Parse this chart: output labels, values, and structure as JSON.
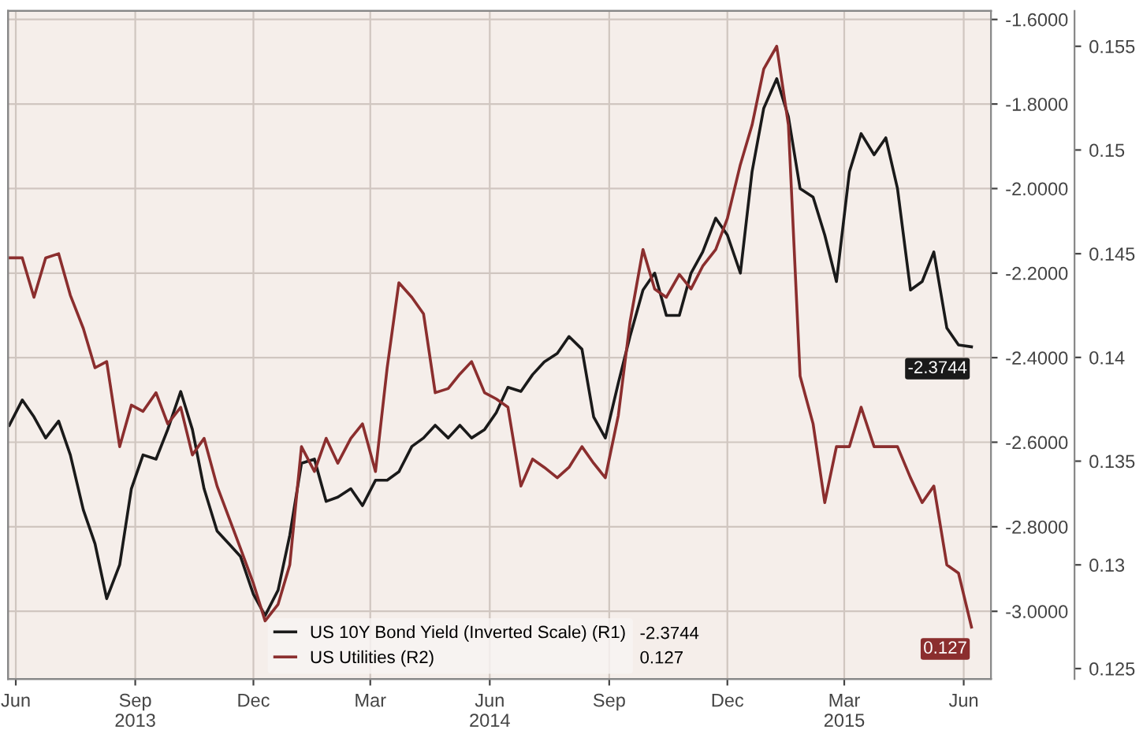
{
  "chart_data": {
    "type": "line",
    "x": [
      "2013-05-27",
      "2013-06-06",
      "2013-06-15",
      "2013-06-24",
      "2013-07-04",
      "2013-07-13",
      "2013-07-23",
      "2013-08-01",
      "2013-08-10",
      "2013-08-20",
      "2013-08-29",
      "2013-09-07",
      "2013-09-17",
      "2013-09-26",
      "2013-10-06",
      "2013-10-15",
      "2013-10-24",
      "2013-11-03",
      "2013-11-12",
      "2013-11-21",
      "2013-12-01",
      "2013-12-10",
      "2013-12-20",
      "2013-12-29",
      "2014-01-07",
      "2014-01-17",
      "2014-01-26",
      "2014-02-04",
      "2014-02-14",
      "2014-02-23",
      "2014-03-05",
      "2014-03-14",
      "2014-03-23",
      "2014-04-02",
      "2014-04-11",
      "2014-04-20",
      "2014-04-30",
      "2014-05-09",
      "2014-05-18",
      "2014-05-28",
      "2014-06-06",
      "2014-06-15",
      "2014-06-25",
      "2014-07-04",
      "2014-07-13",
      "2014-07-23",
      "2014-08-01",
      "2014-08-11",
      "2014-08-20",
      "2014-08-29",
      "2014-09-08",
      "2014-09-17",
      "2014-09-27",
      "2014-10-06",
      "2014-10-15",
      "2014-10-25",
      "2014-11-03",
      "2014-11-12",
      "2014-11-22",
      "2014-12-01",
      "2014-12-11",
      "2014-12-20",
      "2014-12-29",
      "2015-01-08",
      "2015-01-17",
      "2015-01-26",
      "2015-02-05",
      "2015-02-14",
      "2015-02-23",
      "2015-03-05",
      "2015-03-14",
      "2015-03-24",
      "2015-04-02",
      "2015-04-11",
      "2015-04-21",
      "2015-04-30",
      "2015-05-09",
      "2015-05-19",
      "2015-05-28",
      "2015-06-07"
    ],
    "series": [
      {
        "name": "US 10Y Bond Yield (Inverted Scale) (R1)",
        "color": "#1a1a1a",
        "values": [
          -2.56,
          -2.5,
          -2.54,
          -2.59,
          -2.55,
          -2.63,
          -2.76,
          -2.84,
          -2.97,
          -2.89,
          -2.71,
          -2.63,
          -2.64,
          -2.57,
          -2.48,
          -2.57,
          -2.71,
          -2.81,
          -2.84,
          -2.87,
          -2.96,
          -3.01,
          -2.95,
          -2.82,
          -2.65,
          -2.64,
          -2.74,
          -2.73,
          -2.71,
          -2.75,
          -2.69,
          -2.69,
          -2.67,
          -2.61,
          -2.59,
          -2.56,
          -2.59,
          -2.56,
          -2.59,
          -2.57,
          -2.53,
          -2.47,
          -2.48,
          -2.44,
          -2.41,
          -2.39,
          -2.35,
          -2.38,
          -2.54,
          -2.59,
          -2.46,
          -2.35,
          -2.24,
          -2.2,
          -2.3,
          -2.3,
          -2.2,
          -2.15,
          -2.07,
          -2.11,
          -2.2,
          -1.96,
          -1.81,
          -1.74,
          -1.83,
          -2.0,
          -2.02,
          -2.11,
          -2.22,
          -1.96,
          -1.87,
          -1.92,
          -1.88,
          -2.0,
          -2.24,
          -2.22,
          -2.15,
          -2.33,
          -2.37,
          -2.3744
        ],
        "value_labels": [
          null,
          null,
          null,
          null,
          null,
          null,
          null,
          null,
          null,
          null,
          null,
          null,
          null,
          null,
          null,
          null,
          null,
          null,
          null,
          null,
          null,
          null,
          null,
          null,
          null,
          null,
          null,
          null,
          null,
          null,
          null,
          null,
          null,
          null,
          null,
          null,
          null,
          null,
          null,
          null,
          null,
          null,
          null,
          null,
          null,
          null,
          null,
          null,
          null,
          null,
          null,
          null,
          null,
          null,
          null,
          null,
          null,
          null,
          null,
          null,
          null,
          null,
          null,
          null,
          null,
          null,
          null,
          null,
          null,
          null,
          null,
          null,
          null,
          null,
          null,
          null,
          null,
          null,
          null,
          "-2.3744"
        ]
      },
      {
        "name": "US Utilities (R2)",
        "color": "#8b2e2e",
        "axis": "y2",
        "values": [
          0.1448,
          0.1448,
          0.1429,
          0.1448,
          0.145,
          0.143,
          0.1414,
          0.1395,
          0.1398,
          0.1357,
          0.1377,
          0.1374,
          0.1383,
          0.1368,
          0.1376,
          0.1353,
          0.1361,
          0.1338,
          0.1323,
          0.1308,
          0.1291,
          0.1273,
          0.1281,
          0.13,
          0.1357,
          0.1345,
          0.1361,
          0.1349,
          0.1361,
          0.1368,
          0.1345,
          0.1395,
          0.1436,
          0.1429,
          0.1421,
          0.1383,
          0.1385,
          0.1392,
          0.1398,
          0.1383,
          0.138,
          0.1376,
          0.1338,
          0.1351,
          0.1347,
          0.1342,
          0.1347,
          0.1357,
          0.1349,
          0.1342,
          0.1372,
          0.1417,
          0.1452,
          0.1433,
          0.1429,
          0.144,
          0.1433,
          0.1444,
          0.1452,
          0.1467,
          0.1493,
          0.1512,
          0.1539,
          0.155,
          0.1512,
          0.1391,
          0.1368,
          0.133,
          0.1357,
          0.1357,
          0.1376,
          0.1357,
          0.1357,
          0.1357,
          0.1342,
          0.133,
          0.1338,
          0.13,
          0.1296,
          0.127
        ],
        "value_labels": [
          null,
          null,
          null,
          null,
          null,
          null,
          null,
          null,
          null,
          null,
          null,
          null,
          null,
          null,
          null,
          null,
          null,
          null,
          null,
          null,
          null,
          null,
          null,
          null,
          null,
          null,
          null,
          null,
          null,
          null,
          null,
          null,
          null,
          null,
          null,
          null,
          null,
          null,
          null,
          null,
          null,
          null,
          null,
          null,
          null,
          null,
          null,
          null,
          null,
          null,
          null,
          null,
          null,
          null,
          null,
          null,
          null,
          null,
          null,
          null,
          null,
          null,
          null,
          null,
          null,
          null,
          null,
          null,
          null,
          null,
          null,
          null,
          null,
          null,
          null,
          null,
          null,
          null,
          null,
          "0.127"
        ]
      }
    ],
    "xlim": [
      "2013-05-26",
      "2015-06-22"
    ],
    "xticks": [
      {
        "value": "2013-06-01",
        "label": "Jun"
      },
      {
        "value": "2013-09-01",
        "label": "Sep\n2013"
      },
      {
        "value": "2013-12-01",
        "label": "Dec"
      },
      {
        "value": "2014-03-01",
        "label": "Mar"
      },
      {
        "value": "2014-06-01",
        "label": "Jun\n2014"
      },
      {
        "value": "2014-09-01",
        "label": "Sep"
      },
      {
        "value": "2014-12-01",
        "label": "Dec"
      },
      {
        "value": "2015-03-01",
        "label": "Mar\n2015"
      },
      {
        "value": "2015-06-01",
        "label": "Jun"
      }
    ],
    "ylim": [
      -3.16,
      -1.58
    ],
    "yticks": [
      {
        "value": -1.6,
        "label": "-1.6000"
      },
      {
        "value": -1.8,
        "label": "-1.8000"
      },
      {
        "value": -2.0,
        "label": "-2.0000"
      },
      {
        "value": -2.2,
        "label": "-2.2000"
      },
      {
        "value": -2.4,
        "label": "-2.4000"
      },
      {
        "value": -2.6,
        "label": "-2.6000"
      },
      {
        "value": -2.8,
        "label": "-2.8000"
      },
      {
        "value": -3.0,
        "label": "-3.0000"
      }
    ],
    "y2lim": [
      0.1245,
      0.1567
    ],
    "y2ticks": [
      0.125,
      0.13,
      0.135,
      0.14,
      0.145,
      0.15,
      0.155
    ],
    "grid": true,
    "legend": "bottom"
  }
}
